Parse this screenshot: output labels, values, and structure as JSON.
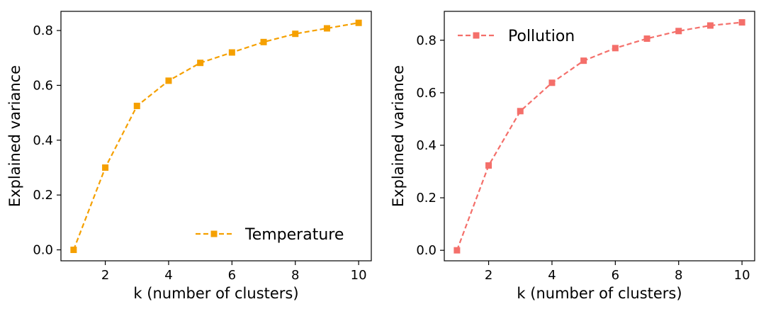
{
  "chart_data": [
    {
      "type": "line",
      "title": "",
      "xlabel": "k (number of clusters)",
      "ylabel": "Explained variance",
      "xlim": [
        0.6,
        10.4
      ],
      "ylim": [
        -0.04,
        0.87
      ],
      "xticks": [
        2,
        4,
        6,
        8,
        10
      ],
      "yticks": [
        0.0,
        0.2,
        0.4,
        0.6,
        0.8
      ],
      "xtick_labels": [
        "2",
        "4",
        "6",
        "8",
        "10"
      ],
      "ytick_labels": [
        "0.0",
        "0.2",
        "0.4",
        "0.6",
        "0.8"
      ],
      "legend_position": "lower-right",
      "grid": false,
      "series": [
        {
          "name": "Temperature",
          "color": "#f5a000",
          "line_style": "dashed",
          "marker": "square",
          "x": [
            1,
            2,
            3,
            4,
            5,
            6,
            7,
            8,
            9,
            10
          ],
          "values": [
            0.0,
            0.3,
            0.525,
            0.617,
            0.682,
            0.72,
            0.758,
            0.788,
            0.808,
            0.828
          ]
        }
      ]
    },
    {
      "type": "line",
      "title": "",
      "xlabel": "k (number of clusters)",
      "ylabel": "Explained variance",
      "xlim": [
        0.6,
        10.4
      ],
      "ylim": [
        -0.04,
        0.91
      ],
      "xticks": [
        2,
        4,
        6,
        8,
        10
      ],
      "yticks": [
        0.0,
        0.2,
        0.4,
        0.6,
        0.8
      ],
      "xtick_labels": [
        "2",
        "4",
        "6",
        "8",
        "10"
      ],
      "ytick_labels": [
        "0.0",
        "0.2",
        "0.4",
        "0.6",
        "0.8"
      ],
      "legend_position": "upper-left",
      "grid": false,
      "series": [
        {
          "name": "Pollution",
          "color": "#f46f6a",
          "line_style": "dashed",
          "marker": "square",
          "x": [
            1,
            2,
            3,
            4,
            5,
            6,
            7,
            8,
            9,
            10
          ],
          "values": [
            0.0,
            0.323,
            0.53,
            0.638,
            0.722,
            0.77,
            0.806,
            0.835,
            0.856,
            0.868
          ]
        }
      ]
    }
  ]
}
